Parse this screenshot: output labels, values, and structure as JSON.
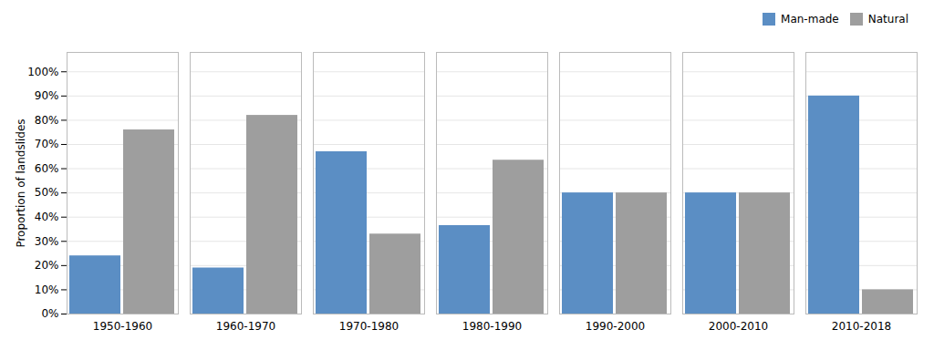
{
  "chart_data": {
    "type": "bar",
    "categories": [
      "1950-1960",
      "1960-1970",
      "1970-1980",
      "1980-1990",
      "1990-2000",
      "2000-2010",
      "2010-2018"
    ],
    "series": [
      {
        "name": "Man-made",
        "color": "#5b8ec4",
        "values": [
          0.24,
          0.19,
          0.67,
          0.365,
          0.5,
          0.5,
          0.9
        ]
      },
      {
        "name": "Natural",
        "color": "#9e9e9e",
        "values": [
          0.76,
          0.82,
          0.33,
          0.635,
          0.5,
          0.5,
          0.1
        ]
      }
    ],
    "ylabel": "Proportion of landslides",
    "ylim": [
      0,
      1.08
    ],
    "yticks": [
      {
        "value": 0.0,
        "label": "0%"
      },
      {
        "value": 0.1,
        "label": "10%"
      },
      {
        "value": 0.2,
        "label": "20%"
      },
      {
        "value": 0.3,
        "label": "30%"
      },
      {
        "value": 0.4,
        "label": "40%"
      },
      {
        "value": 0.5,
        "label": "50%"
      },
      {
        "value": 0.6,
        "label": "60%"
      },
      {
        "value": 0.7,
        "label": "70%"
      },
      {
        "value": 0.8,
        "label": "80%"
      },
      {
        "value": 0.9,
        "label": "90%"
      },
      {
        "value": 1.0,
        "label": "100%"
      }
    ],
    "grid": true,
    "legend": "upper right"
  }
}
